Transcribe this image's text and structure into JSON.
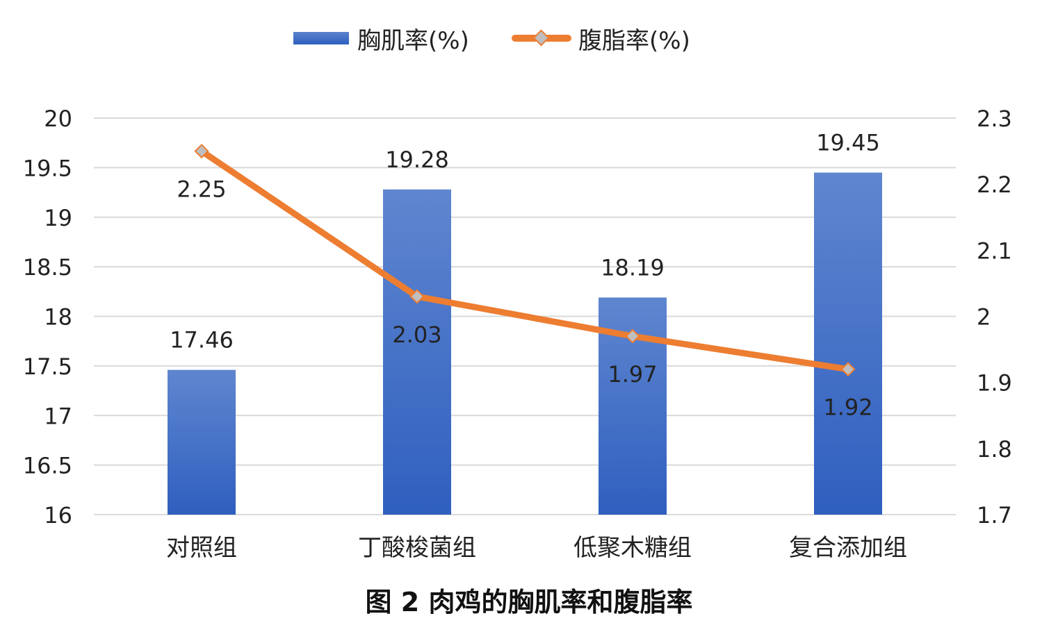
{
  "chart_data": {
    "type": "bar",
    "categories": [
      "对照组",
      "丁酸梭菌组",
      "低聚木糖组",
      "复合添加组"
    ],
    "series": [
      {
        "name": "胸肌率(%)",
        "type": "bar",
        "axis": "left",
        "values": [
          17.46,
          19.28,
          18.19,
          19.45
        ],
        "labels": [
          "17.46",
          "19.28",
          "18.19",
          "19.45"
        ],
        "color": "#4472c4"
      },
      {
        "name": "腹脂率(%)",
        "type": "line",
        "axis": "right",
        "values": [
          2.25,
          2.03,
          1.97,
          1.92
        ],
        "labels": [
          "2.25",
          "2.03",
          "1.97",
          "1.92"
        ],
        "color": "#ed7d31",
        "marker_color": "#bfbfbf"
      }
    ],
    "y_left": {
      "min": 16,
      "max": 20,
      "ticks": [
        "16",
        "16.5",
        "17",
        "17.5",
        "18",
        "18.5",
        "19",
        "19.5",
        "20"
      ]
    },
    "y_right": {
      "min": 1.7,
      "max": 2.3,
      "ticks": [
        "1.7",
        "1.8",
        "1.9",
        "2",
        "2.1",
        "2.2",
        "2.3"
      ]
    },
    "grid": true,
    "legend_position": "top",
    "title": "图 2 肉鸡的胸肌率和腹脂率"
  }
}
